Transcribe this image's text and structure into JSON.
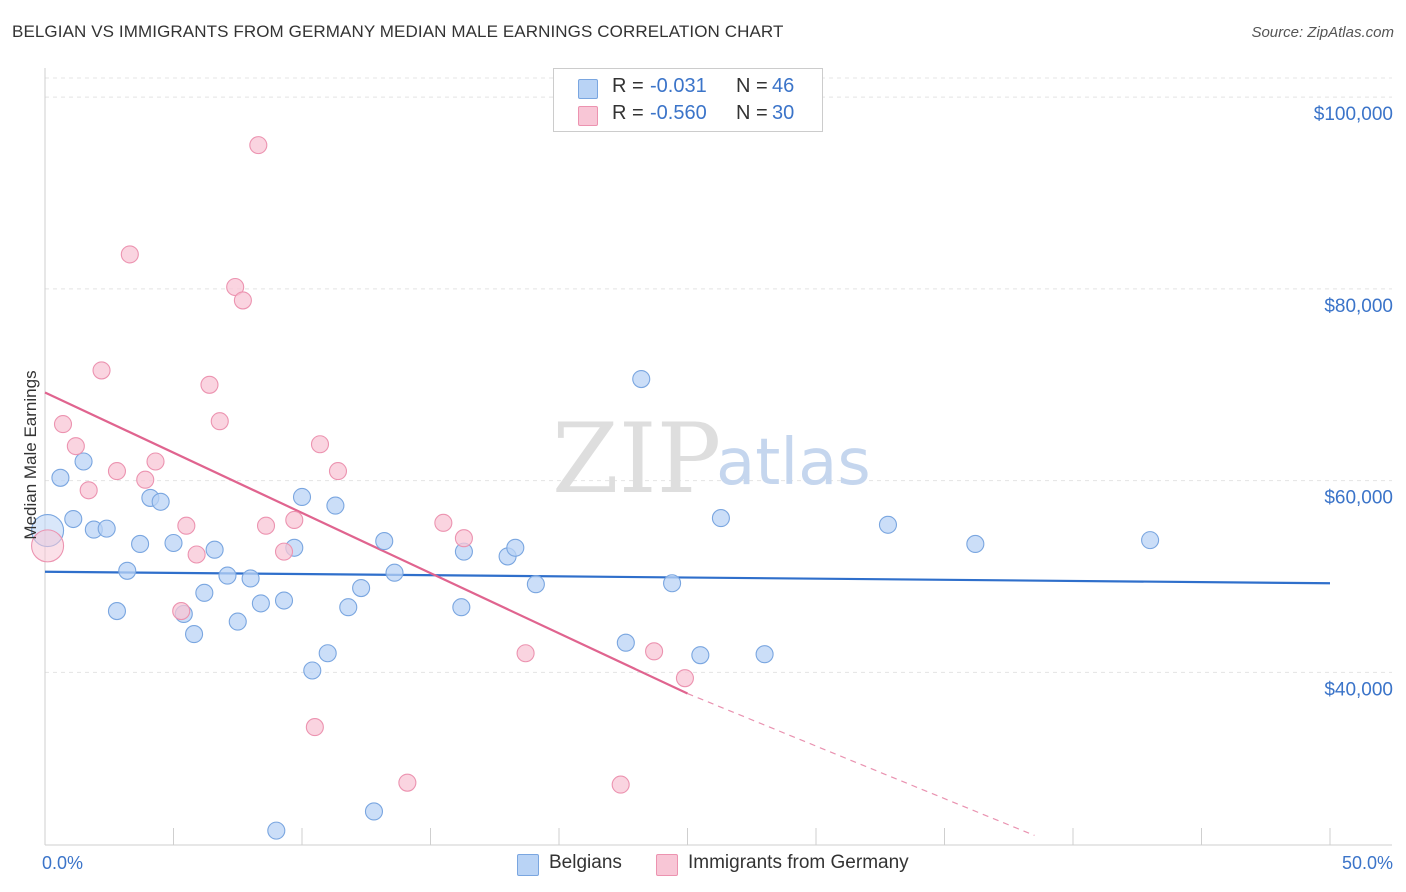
{
  "header": {
    "title": "BELGIAN VS IMMIGRANTS FROM GERMANY MEDIAN MALE EARNINGS CORRELATION CHART",
    "source": "Source: ZipAtlas.com"
  },
  "watermark": {
    "zip": "ZIP",
    "atlas": "atlas"
  },
  "legend_top": {
    "rows": [
      {
        "r_label": "R =",
        "r_value": "-0.031",
        "n_label": "N =",
        "n_value": "46",
        "color": "#b9d3f5",
        "border": "#7aa6e0"
      },
      {
        "r_label": "R =",
        "r_value": "-0.560",
        "n_label": "N =",
        "n_value": "30",
        "color": "#f8c6d6",
        "border": "#ec93b0"
      }
    ]
  },
  "legend_bottom": {
    "items": [
      {
        "label": "Belgians",
        "color": "#b9d3f5",
        "border": "#7aa6e0"
      },
      {
        "label": "Immigrants from Germany",
        "color": "#f8c6d6",
        "border": "#ec93b0"
      }
    ]
  },
  "chart_data": {
    "type": "scatter",
    "title": "BELGIAN VS IMMIGRANTS FROM GERMANY MEDIAN MALE EARNINGS CORRELATION CHART",
    "xlabel": "",
    "ylabel": "Median Male Earnings",
    "xlim": [
      0,
      50
    ],
    "ylim": [
      22000,
      102000
    ],
    "x_tick_labels": [
      "0.0%",
      "50.0%"
    ],
    "y_ticks": [
      40000,
      60000,
      80000,
      100000
    ],
    "y_tick_labels": [
      "$40,000",
      "$60,000",
      "$80,000",
      "$100,000"
    ],
    "grid": true,
    "legend_position": "top-center",
    "series": [
      {
        "name": "Belgians",
        "color": "#b9d3f5",
        "edge": "#7aa6e0",
        "line_color": "#2f6fcb",
        "trend": {
          "x": [
            0,
            50
          ],
          "y": [
            50500,
            49300
          ]
        },
        "points": [
          [
            0.1,
            54800
          ],
          [
            0.6,
            60300
          ],
          [
            1.1,
            56000
          ],
          [
            1.5,
            62000
          ],
          [
            1.9,
            54900
          ],
          [
            2.4,
            55000
          ],
          [
            2.8,
            46400
          ],
          [
            3.2,
            50600
          ],
          [
            3.7,
            53400
          ],
          [
            4.1,
            58200
          ],
          [
            4.5,
            57800
          ],
          [
            5.0,
            53500
          ],
          [
            5.4,
            46100
          ],
          [
            5.8,
            44000
          ],
          [
            6.2,
            48300
          ],
          [
            6.6,
            52800
          ],
          [
            7.1,
            50100
          ],
          [
            7.5,
            45300
          ],
          [
            8.0,
            49800
          ],
          [
            8.4,
            47200
          ],
          [
            9.0,
            23500
          ],
          [
            9.3,
            47500
          ],
          [
            9.7,
            53000
          ],
          [
            10.0,
            58300
          ],
          [
            10.4,
            40200
          ],
          [
            11.0,
            42000
          ],
          [
            11.3,
            57400
          ],
          [
            11.8,
            46800
          ],
          [
            12.3,
            48800
          ],
          [
            12.8,
            25500
          ],
          [
            13.2,
            53700
          ],
          [
            13.6,
            50400
          ],
          [
            16.2,
            46800
          ],
          [
            16.3,
            52600
          ],
          [
            18.0,
            52100
          ],
          [
            18.3,
            53000
          ],
          [
            19.1,
            49200
          ],
          [
            22.6,
            43100
          ],
          [
            23.2,
            70600
          ],
          [
            24.4,
            49300
          ],
          [
            25.5,
            41800
          ],
          [
            26.3,
            56100
          ],
          [
            28.0,
            41900
          ],
          [
            32.8,
            55400
          ],
          [
            36.2,
            53400
          ],
          [
            43.0,
            53800
          ]
        ]
      },
      {
        "name": "Immigrants from Germany",
        "color": "#f8c6d6",
        "edge": "#ec93b0",
        "line_color": "#e0648f",
        "trend": {
          "x": [
            0,
            25
          ],
          "y": [
            69200,
            37800
          ]
        },
        "trend_dashed": {
          "x": [
            25,
            38.5
          ],
          "y": [
            37800,
            23000
          ]
        },
        "points": [
          [
            0.1,
            53200
          ],
          [
            0.7,
            65900
          ],
          [
            1.2,
            63600
          ],
          [
            1.7,
            59000
          ],
          [
            2.2,
            71500
          ],
          [
            2.8,
            61000
          ],
          [
            3.3,
            83600
          ],
          [
            3.9,
            60100
          ],
          [
            4.3,
            62000
          ],
          [
            5.3,
            46400
          ],
          [
            5.5,
            55300
          ],
          [
            5.9,
            52300
          ],
          [
            6.4,
            70000
          ],
          [
            6.8,
            66200
          ],
          [
            7.4,
            80200
          ],
          [
            7.7,
            78800
          ],
          [
            8.3,
            95000
          ],
          [
            8.6,
            55300
          ],
          [
            9.3,
            52600
          ],
          [
            9.7,
            55900
          ],
          [
            10.5,
            34300
          ],
          [
            10.7,
            63800
          ],
          [
            11.4,
            61000
          ],
          [
            14.1,
            28500
          ],
          [
            15.5,
            55600
          ],
          [
            16.3,
            54000
          ],
          [
            18.7,
            42000
          ],
          [
            22.4,
            28300
          ],
          [
            23.7,
            42200
          ],
          [
            24.9,
            39400
          ]
        ]
      }
    ]
  }
}
